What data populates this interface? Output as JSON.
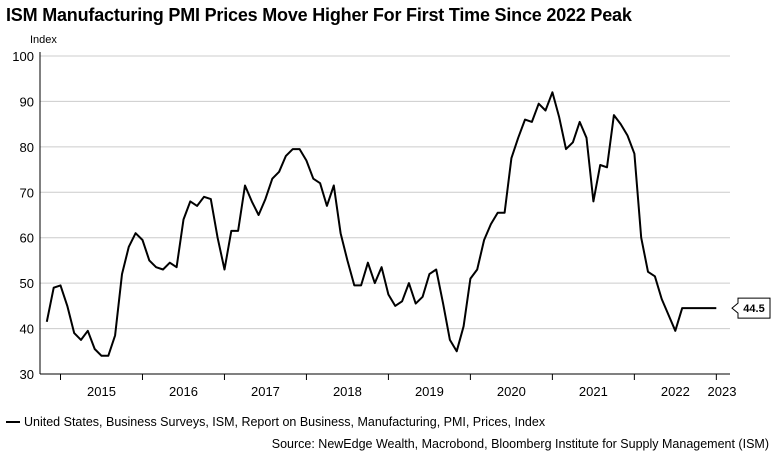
{
  "title": "ISM Manufacturing PMI Prices Move Higher For First Time Since 2022 Peak",
  "legend_label": "United States, Business Surveys, ISM, Report on Business, Manufacturing, PMI, Prices, Index",
  "source": "Source: NewEdge Wealth, Macrobond, Bloomberg Institute for Supply Management (ISM)",
  "colors": {
    "line": "#000000",
    "grid": "#cccccc",
    "axis": "#000000"
  },
  "chart_data": {
    "type": "line",
    "title": "ISM Manufacturing PMI Prices Move Higher For First Time Since 2022 Peak",
    "ylabel": "Index",
    "ylim": [
      30,
      100
    ],
    "yticks": [
      30,
      40,
      50,
      60,
      70,
      80,
      90,
      100
    ],
    "xlim": [
      "2014-10",
      "2023-03"
    ],
    "xtick_labels": [
      "2015",
      "2016",
      "2017",
      "2018",
      "2019",
      "2020",
      "2021",
      "2022",
      "2023"
    ],
    "grid": true,
    "legend_position": "bottom-left",
    "last_value_label": "44.5",
    "series": [
      {
        "name": "United States, Business Surveys, ISM, Report on Business, Manufacturing, PMI, Prices, Index",
        "x": [
          "2014-11",
          "2014-12",
          "2015-01",
          "2015-02",
          "2015-03",
          "2015-04",
          "2015-05",
          "2015-06",
          "2015-07",
          "2015-08",
          "2015-09",
          "2015-10",
          "2015-11",
          "2015-12",
          "2016-01",
          "2016-02",
          "2016-03",
          "2016-04",
          "2016-05",
          "2016-06",
          "2016-07",
          "2016-08",
          "2016-09",
          "2016-10",
          "2016-11",
          "2016-12",
          "2017-01",
          "2017-02",
          "2017-03",
          "2017-04",
          "2017-05",
          "2017-06",
          "2017-07",
          "2017-08",
          "2017-09",
          "2017-10",
          "2017-11",
          "2017-12",
          "2018-01",
          "2018-02",
          "2018-03",
          "2018-04",
          "2018-05",
          "2018-06",
          "2018-07",
          "2018-08",
          "2018-09",
          "2018-10",
          "2018-11",
          "2018-12",
          "2019-01",
          "2019-02",
          "2019-03",
          "2019-04",
          "2019-05",
          "2019-06",
          "2019-07",
          "2019-08",
          "2019-09",
          "2019-10",
          "2019-11",
          "2019-12",
          "2020-01",
          "2020-02",
          "2020-03",
          "2020-04",
          "2020-05",
          "2020-06",
          "2020-07",
          "2020-08",
          "2020-09",
          "2020-10",
          "2020-11",
          "2020-12",
          "2021-01",
          "2021-02",
          "2021-03",
          "2021-04",
          "2021-05",
          "2021-06",
          "2021-07",
          "2021-08",
          "2021-09",
          "2021-10",
          "2021-11",
          "2021-12",
          "2022-01",
          "2022-02",
          "2022-03",
          "2022-04",
          "2022-05",
          "2022-06",
          "2022-07",
          "2022-08",
          "2022-09",
          "2022-10",
          "2022-11",
          "2022-12",
          "2023-01"
        ],
        "values": [
          41.5,
          49.0,
          49.5,
          45.0,
          39.0,
          37.5,
          39.5,
          35.5,
          34.0,
          34.0,
          38.5,
          52.0,
          58.0,
          61.0,
          59.5,
          55.0,
          53.5,
          53.0,
          54.5,
          53.5,
          64.0,
          68.0,
          67.0,
          69.0,
          68.5,
          60.0,
          53.0,
          61.5,
          61.5,
          71.5,
          68.0,
          65.0,
          68.5,
          73.0,
          74.5,
          78.0,
          79.5,
          79.5,
          77.0,
          73.0,
          72.0,
          67.0,
          71.5,
          61.0,
          55.0,
          49.5,
          49.5,
          54.5,
          50.0,
          53.5,
          47.5,
          45.0,
          46.0,
          50.0,
          45.5,
          47.0,
          52.0,
          53.0,
          45.5,
          37.5,
          35.0,
          40.5,
          51.0,
          53.0,
          59.5,
          63.0,
          65.5,
          65.5,
          77.5,
          82.0,
          86.0,
          85.5,
          89.5,
          88.0,
          92.0,
          86.5,
          79.5,
          81.0,
          85.5,
          82.0,
          68.0,
          76.0,
          75.5,
          87.0,
          85.0,
          82.5,
          78.5,
          60.0,
          52.5,
          51.5,
          46.5,
          43.0,
          39.5,
          44.5,
          44.5,
          44.5,
          44.5,
          44.5,
          44.5
        ]
      }
    ]
  }
}
